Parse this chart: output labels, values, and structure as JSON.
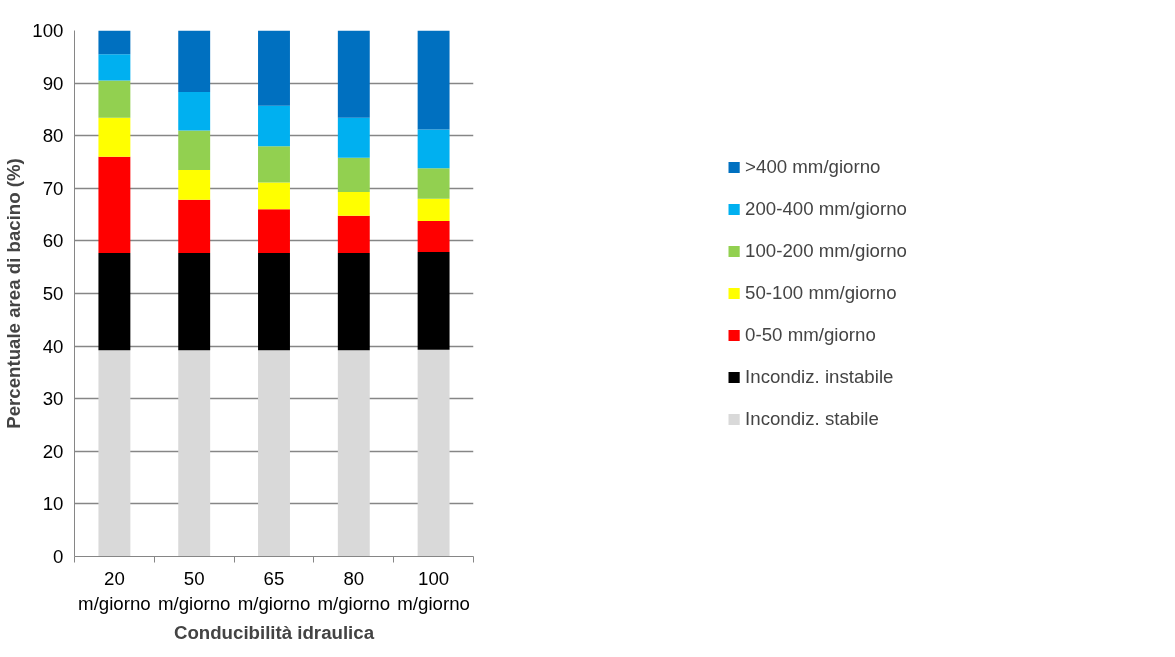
{
  "chart_data": {
    "type": "bar",
    "stacked": true,
    "xlabel": "Conducibilità idraulica",
    "ylabel": "Percentuale area di bacino (%)",
    "categories": [
      "20\nm/giorno",
      "50\nm/giorno",
      "65\nm/giorno",
      "80\nm/giorno",
      "100\nm/giorno"
    ],
    "series": [
      {
        "name": "Incondiz. stabile",
        "color": "#d9d9d9",
        "values": [
          39.2,
          39.2,
          39.2,
          39.2,
          39.3
        ]
      },
      {
        "name": "Incondiz. instabile",
        "color": "#000000",
        "values": [
          18.5,
          18.5,
          18.5,
          18.5,
          18.6
        ]
      },
      {
        "name": "0-50 mm/giorno",
        "color": "#ff0000",
        "values": [
          18.3,
          10.1,
          8.3,
          7.1,
          5.9
        ]
      },
      {
        "name": "50-100 mm/giorno",
        "color": "#ffff00",
        "values": [
          7.4,
          5.7,
          5.1,
          4.5,
          4.2
        ]
      },
      {
        "name": "100-200 mm/giorno",
        "color": "#92d050",
        "values": [
          7.1,
          7.5,
          6.9,
          6.5,
          5.8
        ]
      },
      {
        "name": "200-400 mm/giorno",
        "color": "#00b0f0",
        "values": [
          5.0,
          7.3,
          7.7,
          7.6,
          7.4
        ]
      },
      {
        "name": ">400 mm/giorno",
        "color": "#0070c0",
        "values": [
          4.5,
          11.7,
          14.3,
          16.6,
          18.8
        ]
      }
    ],
    "ylim": [
      0,
      100
    ],
    "yticks": [
      0,
      10,
      20,
      30,
      40,
      50,
      60,
      70,
      80,
      90,
      100
    ],
    "grid": "y",
    "legend": "right"
  }
}
